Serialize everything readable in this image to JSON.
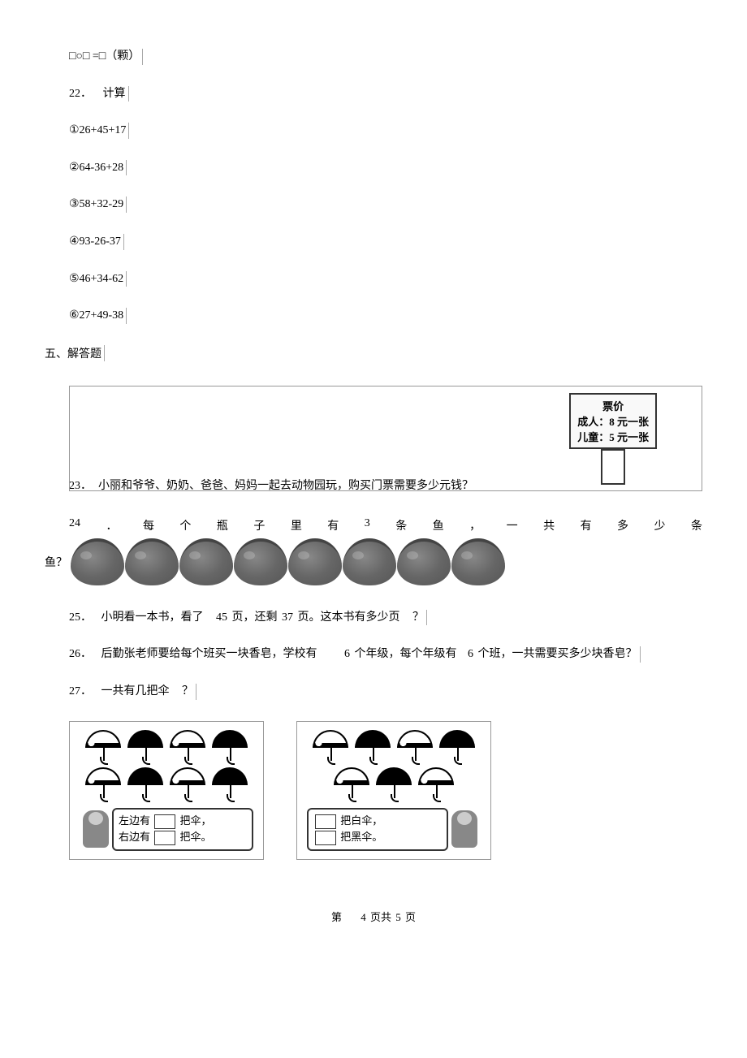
{
  "q21_tail": "□○□ =□（颗）",
  "q22": {
    "num": "22．",
    "title": "计算",
    "items": [
      "①26+45+17",
      "②64-36+28",
      "③58+32-29",
      "④93-26-37",
      "⑤46+34-62",
      "⑥27+49-38"
    ]
  },
  "section5": "五、解答题",
  "price_board": {
    "title": "票价",
    "adult": "成人：8 元一张",
    "child": "儿童：5 元一张"
  },
  "q23": {
    "num": "23．",
    "text": "小丽和爷爷、奶奶、爸爸、妈妈一起去动物园玩，购买门票需要多少元钱？"
  },
  "q24": {
    "num": "24",
    "dot": "．",
    "words": [
      "每",
      "个",
      "瓶",
      "子",
      "里",
      "有",
      "3",
      "条",
      "鱼",
      "，",
      "一",
      "共",
      "有",
      "多",
      "少",
      "条"
    ],
    "tail_label": "鱼？",
    "bowl_count": 8
  },
  "q25": {
    "num": "25．",
    "text": "小明看一本书，看了",
    "n1": "45",
    "mid": "页，还剩",
    "n2": "37",
    "tail": "页。这本书有多少页",
    "qm": "？"
  },
  "q26": {
    "num": "26．",
    "text": "后勤张老师要给每个班买一块香皂，学校有",
    "n1": "6",
    "mid": "个年级，每个年级有",
    "n2": "6",
    "tail": "个班，一共需要买多少块香皂？"
  },
  "q27": {
    "num": "27．",
    "text": "一共有几把伞",
    "qm": "？"
  },
  "umbrella_left": {
    "row1": [
      "white",
      "black",
      "white",
      "black"
    ],
    "row2": [
      "white",
      "black",
      "white",
      "black"
    ],
    "card": {
      "l1a": "左边有",
      "l1b": "把伞，",
      "l2a": "右边有",
      "l2b": "把伞。"
    }
  },
  "umbrella_right": {
    "row1": [
      "white",
      "black",
      "white",
      "black"
    ],
    "row2": [
      "white",
      "black",
      "white"
    ],
    "card": {
      "l1": "把白伞，",
      "l2": "把黑伞。"
    }
  },
  "footer": {
    "label": "第",
    "page": "4",
    "mid": "页共",
    "total": "5",
    "tail": "页"
  }
}
